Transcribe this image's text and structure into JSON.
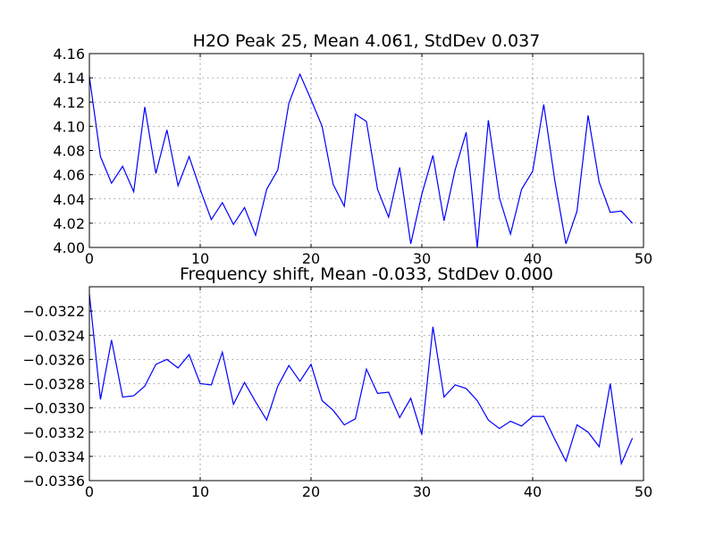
{
  "colors": {
    "line": "#0000ff",
    "background": "#ffffff",
    "axis": "#000000"
  },
  "chart_data": [
    {
      "type": "line",
      "title": "H2O Peak 25, Mean 4.061, StdDev 0.037",
      "xlabel": "",
      "ylabel": "",
      "xlim": [
        0,
        50
      ],
      "ylim": [
        4.0,
        4.16
      ],
      "grid": true,
      "x_ticks": [
        "0",
        "10",
        "20",
        "30",
        "40",
        "50"
      ],
      "y_ticks": [
        "4.00",
        "4.02",
        "4.04",
        "4.06",
        "4.08",
        "4.10",
        "4.12",
        "4.14",
        "4.16"
      ],
      "series": [
        {
          "x": [
            0,
            1,
            2,
            3,
            4,
            5,
            6,
            7,
            8,
            9,
            10,
            11,
            12,
            13,
            14,
            15,
            16,
            17,
            18,
            19,
            20,
            21,
            22,
            23,
            24,
            25,
            26,
            27,
            28,
            29,
            30,
            31,
            32,
            33,
            34,
            35,
            36,
            37,
            38,
            39,
            40,
            41,
            42,
            43,
            44,
            45,
            46,
            47,
            48,
            49
          ],
          "values": [
            4.141,
            4.075,
            4.053,
            4.067,
            4.046,
            4.116,
            4.061,
            4.097,
            4.051,
            4.075,
            4.048,
            4.023,
            4.037,
            4.019,
            4.033,
            4.01,
            4.048,
            4.064,
            4.119,
            4.143,
            4.122,
            4.1,
            4.052,
            4.034,
            4.11,
            4.104,
            4.048,
            4.025,
            4.066,
            4.003,
            4.044,
            4.076,
            4.022,
            4.064,
            4.095,
            4.0,
            4.105,
            4.041,
            4.011,
            4.048,
            4.063,
            4.118,
            4.055,
            4.003,
            4.03,
            4.109,
            4.054,
            4.029,
            4.03,
            4.02
          ]
        }
      ]
    },
    {
      "type": "line",
      "title": "Frequency shift, Mean -0.033, StdDev 0.000",
      "xlabel": "",
      "ylabel": "",
      "xlim": [
        0,
        50
      ],
      "ylim": [
        -0.0336,
        -0.032
      ],
      "grid": true,
      "x_ticks": [
        "0",
        "10",
        "20",
        "30",
        "40",
        "50"
      ],
      "y_ticks": [
        "−0.0336",
        "−0.0334",
        "−0.0332",
        "−0.0330",
        "−0.0328",
        "−0.0326",
        "−0.0324",
        "−0.0322"
      ],
      "series": [
        {
          "x": [
            0,
            1,
            2,
            3,
            4,
            5,
            6,
            7,
            8,
            9,
            10,
            11,
            12,
            13,
            14,
            15,
            16,
            17,
            18,
            19,
            20,
            21,
            22,
            23,
            24,
            25,
            26,
            27,
            28,
            29,
            30,
            31,
            32,
            33,
            34,
            35,
            36,
            37,
            38,
            39,
            40,
            41,
            42,
            43,
            44,
            45,
            46,
            47,
            48,
            49
          ],
          "values": [
            -0.03206,
            -0.03293,
            -0.03244,
            -0.03291,
            -0.0329,
            -0.03282,
            -0.03264,
            -0.0326,
            -0.03267,
            -0.03256,
            -0.0328,
            -0.03281,
            -0.03254,
            -0.03297,
            -0.03279,
            -0.03295,
            -0.0331,
            -0.03282,
            -0.03265,
            -0.03278,
            -0.03264,
            -0.03294,
            -0.03302,
            -0.03314,
            -0.03309,
            -0.03268,
            -0.03288,
            -0.03287,
            -0.03308,
            -0.03292,
            -0.03322,
            -0.03233,
            -0.03291,
            -0.03281,
            -0.03284,
            -0.03294,
            -0.0331,
            -0.03317,
            -0.03311,
            -0.03315,
            -0.03307,
            -0.03307,
            -0.03326,
            -0.03344,
            -0.03314,
            -0.0332,
            -0.03332,
            -0.0328,
            -0.03346,
            -0.03325
          ]
        }
      ]
    }
  ]
}
